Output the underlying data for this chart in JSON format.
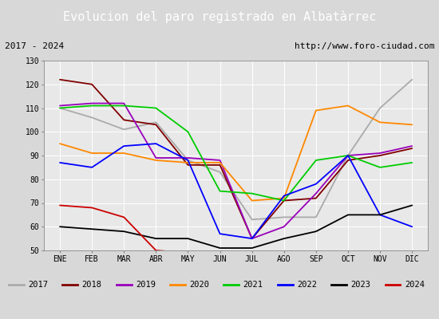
{
  "title": "Evolucion del paro registrado en Albatàrrec",
  "subtitle_left": "2017 - 2024",
  "subtitle_right": "http://www.foro-ciudad.com",
  "months": [
    "ENE",
    "FEB",
    "MAR",
    "ABR",
    "MAY",
    "JUN",
    "JUL",
    "AGO",
    "SEP",
    "OCT",
    "NOV",
    "DIC"
  ],
  "ylim": [
    50,
    130
  ],
  "yticks": [
    50,
    60,
    70,
    80,
    90,
    100,
    110,
    120,
    130
  ],
  "series": {
    "2017": {
      "color": "#aaaaaa",
      "data": [
        110,
        106,
        101,
        104,
        88,
        83,
        63,
        64,
        64,
        90,
        110,
        122
      ]
    },
    "2018": {
      "color": "#800000",
      "data": [
        122,
        120,
        105,
        103,
        86,
        86,
        55,
        71,
        72,
        88,
        90,
        93
      ]
    },
    "2019": {
      "color": "#9900bb",
      "data": [
        111,
        112,
        112,
        89,
        89,
        88,
        55,
        60,
        74,
        90,
        91,
        94
      ]
    },
    "2020": {
      "color": "#ff8800",
      "data": [
        95,
        91,
        91,
        88,
        87,
        87,
        71,
        72,
        109,
        111,
        104,
        103
      ]
    },
    "2021": {
      "color": "#00cc00",
      "data": [
        110,
        111,
        111,
        110,
        100,
        75,
        74,
        71,
        88,
        90,
        85,
        87
      ]
    },
    "2022": {
      "color": "#0000ff",
      "data": [
        87,
        85,
        94,
        95,
        88,
        57,
        55,
        73,
        78,
        90,
        65,
        60
      ]
    },
    "2023": {
      "color": "#000000",
      "data": [
        60,
        59,
        58,
        55,
        55,
        51,
        51,
        55,
        58,
        65,
        65,
        69
      ]
    },
    "2024": {
      "color": "#cc0000",
      "data": [
        69,
        68,
        64,
        50,
        49,
        null,
        null,
        null,
        null,
        null,
        null,
        null
      ]
    }
  },
  "background_color": "#d8d8d8",
  "title_bg": "#4d8fcc",
  "title_color": "white",
  "subtitle_bg": "#d0d0d0",
  "plot_bg": "#e8e8e8",
  "legend_bg": "#f0f0f0",
  "title_fontsize": 11,
  "subtitle_fontsize": 8,
  "tick_fontsize": 7,
  "legend_fontsize": 7.5
}
